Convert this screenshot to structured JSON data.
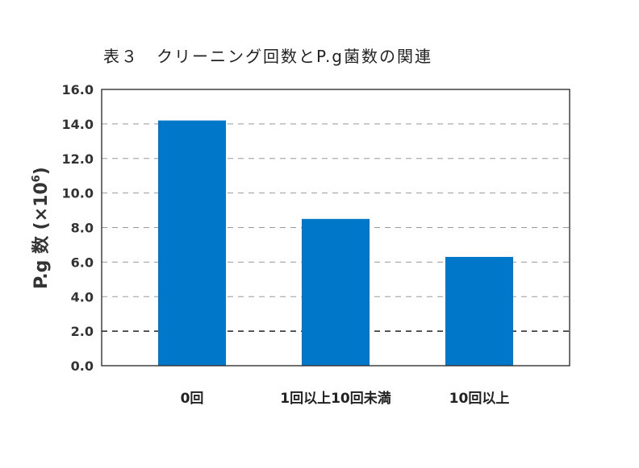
{
  "chart_data": {
    "type": "bar",
    "title": "表３　クリーニング回数とP.g菌数の関連",
    "ylabel_main": "P.g 数 (×10",
    "ylabel_exp": "6",
    "ylabel_close": ")",
    "xlabel": "",
    "categories": [
      "0回",
      "1回以上10回未満",
      "10回以上"
    ],
    "values": [
      14.2,
      8.5,
      6.3
    ],
    "ylim": [
      0,
      16
    ],
    "yticks": [
      "0.0",
      "2.0",
      "4.0",
      "6.0",
      "8.0",
      "10.0",
      "12.0",
      "14.0",
      "16.0"
    ],
    "grid": true,
    "bar_color": "#0077c8",
    "grid_color": "#999999",
    "axis_color": "#333333"
  }
}
